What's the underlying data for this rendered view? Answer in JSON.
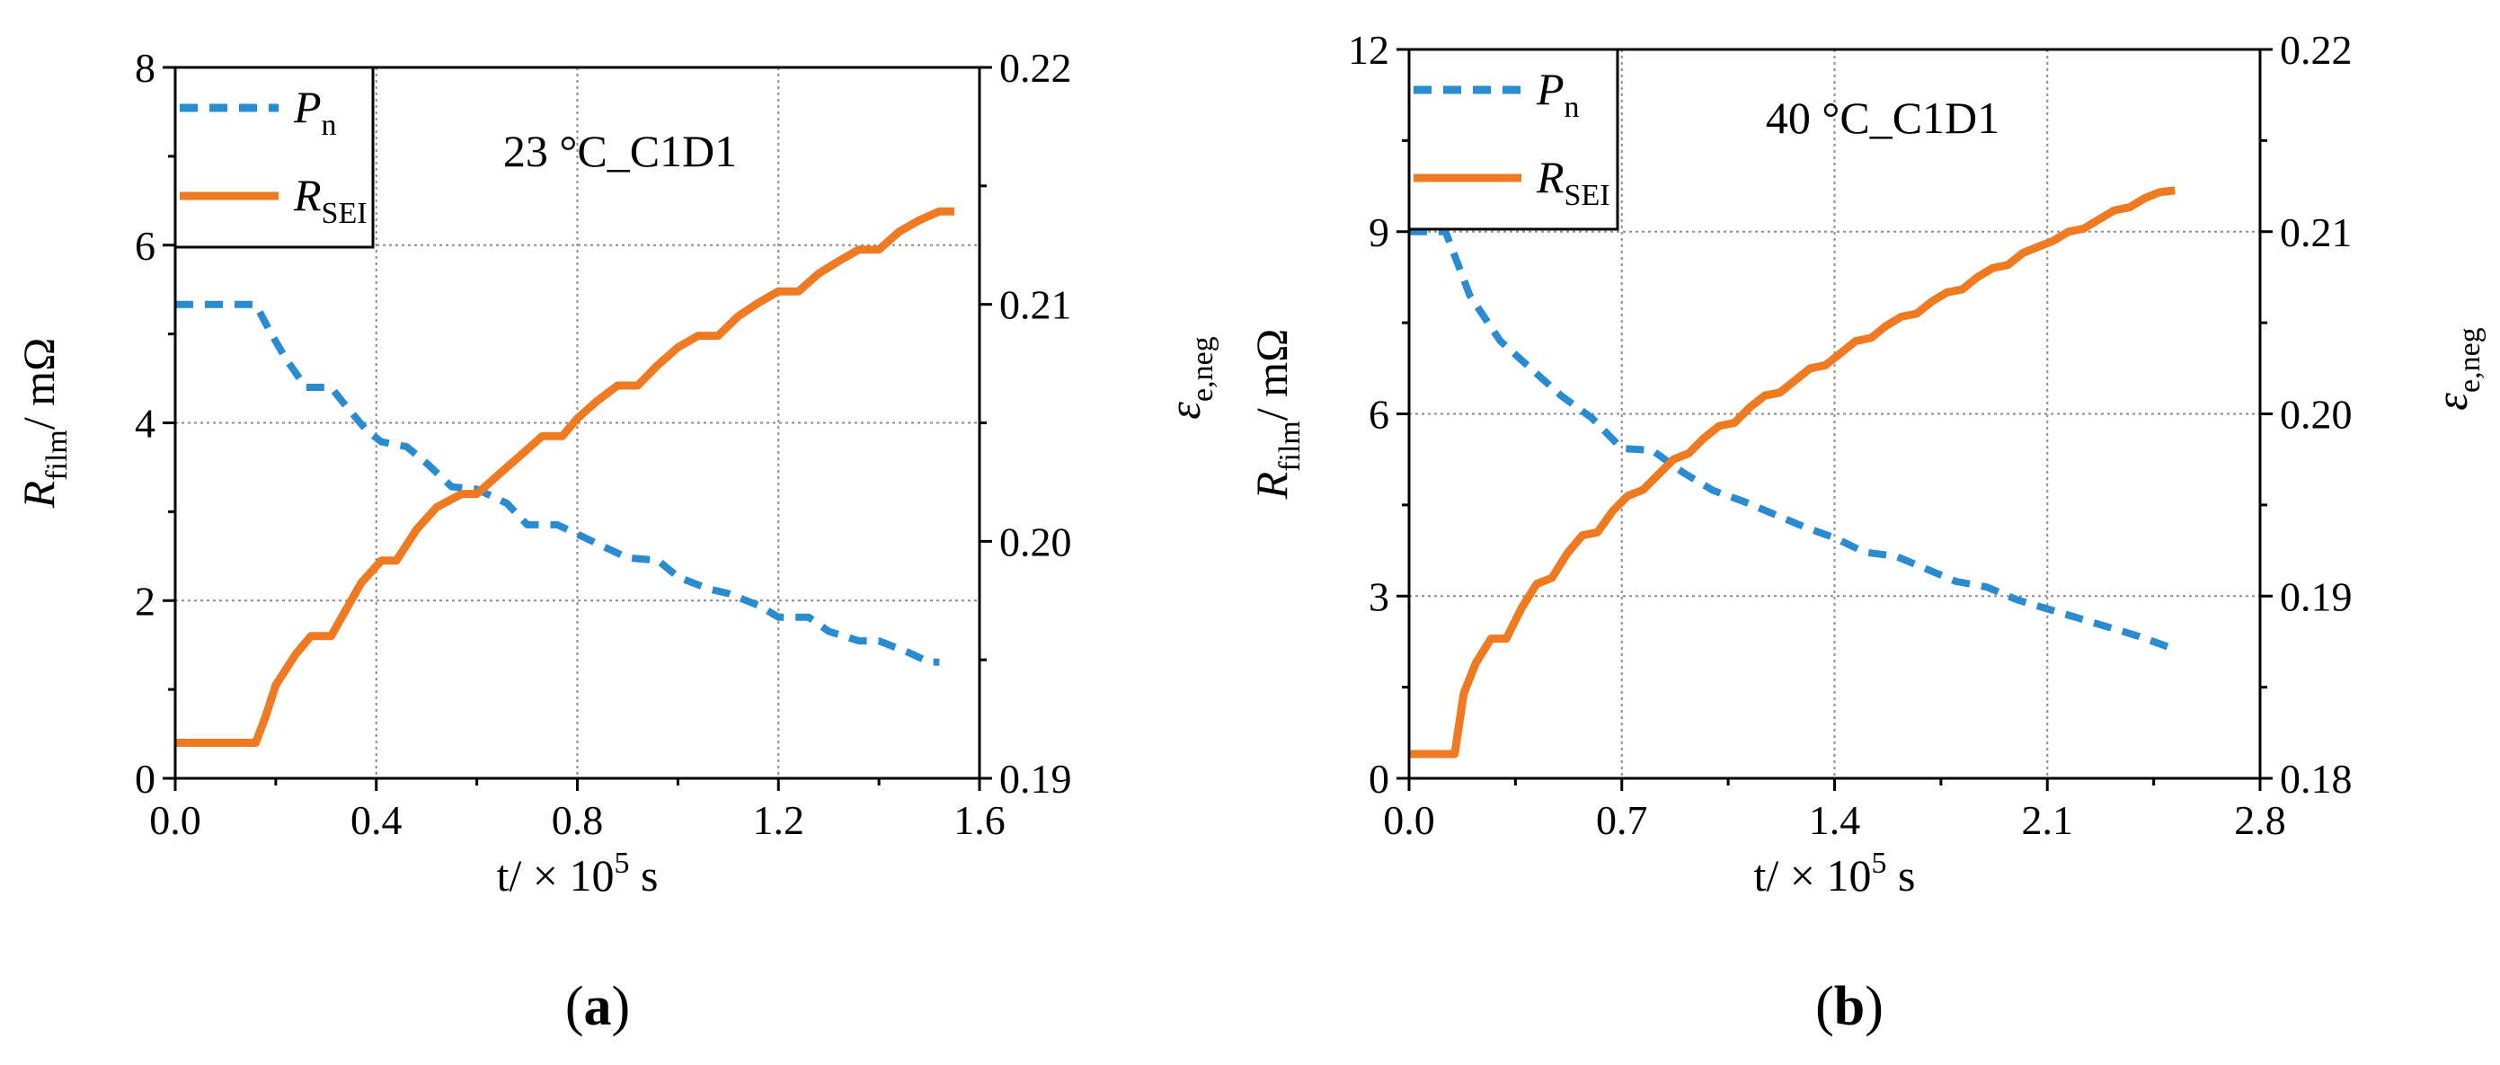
{
  "chart_data": [
    {
      "type": "line",
      "panel_label": "a",
      "annotation": "23 °C_C1D1",
      "xlabel": "t/ × 10⁵ s",
      "xlabel_parts": {
        "pre": "t/ × 10",
        "sup": "5",
        "post": " s"
      },
      "ylabel_left": {
        "main": "R",
        "sub": "film",
        "post": "/ mΩ"
      },
      "ylabel_right": {
        "main": "ε",
        "sub": "e,neg"
      },
      "xlim": [
        0,
        1.6
      ],
      "ylim_left": [
        0,
        8
      ],
      "ylim_right": [
        0.19,
        0.22
      ],
      "xticks": [
        "0.0",
        "0.4",
        "0.8",
        "1.2",
        "1.6"
      ],
      "yticks_left": [
        "0",
        "2",
        "4",
        "6",
        "8"
      ],
      "yticks_right": [
        "0.19",
        "0.20",
        "0.21",
        "0.22"
      ],
      "grid": true,
      "legend": [
        {
          "main": "P",
          "sub": "n",
          "style": "dashed",
          "color": "#2a8cd0"
        },
        {
          "main": "R",
          "sub": "SEI",
          "style": "solid",
          "color": "#f07a22"
        }
      ],
      "series": [
        {
          "name": "Pn",
          "axis": "right",
          "style": "dashed",
          "color": "#2a8cd0",
          "x": [
            0.0,
            0.16,
            0.19,
            0.22,
            0.26,
            0.31,
            0.34,
            0.38,
            0.41,
            0.46,
            0.5,
            0.55,
            0.6,
            0.66,
            0.7,
            0.76,
            0.8,
            0.85,
            0.9,
            0.96,
            1.0,
            1.06,
            1.1,
            1.16,
            1.2,
            1.26,
            1.3,
            1.36,
            1.4,
            1.46,
            1.5,
            1.52
          ],
          "y": [
            0.21,
            0.21,
            0.2088,
            0.2077,
            0.2065,
            0.2065,
            0.2057,
            0.2047,
            0.2042,
            0.204,
            0.2033,
            0.2023,
            0.2022,
            0.2016,
            0.2007,
            0.2007,
            0.2003,
            0.1998,
            0.1993,
            0.1992,
            0.1985,
            0.198,
            0.1978,
            0.1973,
            0.1968,
            0.1968,
            0.1962,
            0.1958,
            0.1958,
            0.1953,
            0.1949,
            0.1949
          ]
        },
        {
          "name": "RSEI",
          "axis": "left",
          "style": "solid",
          "color": "#f07a22",
          "x": [
            0.0,
            0.16,
            0.18,
            0.2,
            0.24,
            0.27,
            0.31,
            0.33,
            0.37,
            0.41,
            0.44,
            0.48,
            0.52,
            0.57,
            0.6,
            0.64,
            0.66,
            0.7,
            0.73,
            0.77,
            0.8,
            0.84,
            0.88,
            0.92,
            0.96,
            1.0,
            1.04,
            1.08,
            1.12,
            1.16,
            1.2,
            1.24,
            1.28,
            1.32,
            1.36,
            1.4,
            1.44,
            1.48,
            1.52,
            1.55
          ],
          "y": [
            0.4,
            0.4,
            0.7,
            1.05,
            1.4,
            1.6,
            1.6,
            1.8,
            2.2,
            2.45,
            2.45,
            2.8,
            3.05,
            3.2,
            3.2,
            3.4,
            3.5,
            3.7,
            3.85,
            3.85,
            4.05,
            4.25,
            4.42,
            4.42,
            4.65,
            4.85,
            4.98,
            4.98,
            5.2,
            5.35,
            5.48,
            5.48,
            5.68,
            5.82,
            5.95,
            5.95,
            6.15,
            6.28,
            6.38,
            6.38
          ]
        }
      ]
    },
    {
      "type": "line",
      "panel_label": "b",
      "annotation": "40 °C_C1D1",
      "xlabel": "t/ × 10⁵ s",
      "xlabel_parts": {
        "pre": "t/ × 10",
        "sup": "5",
        "post": " s"
      },
      "ylabel_left": {
        "main": "R",
        "sub": "film",
        "post": "/ mΩ"
      },
      "ylabel_right": {
        "main": "ε",
        "sub": "e,neg"
      },
      "xlim": [
        0,
        2.8
      ],
      "ylim_left": [
        0,
        12
      ],
      "ylim_right": [
        0.18,
        0.22
      ],
      "xticks": [
        "0.0",
        "0.7",
        "1.4",
        "2.1",
        "2.8"
      ],
      "yticks_left": [
        "0",
        "3",
        "6",
        "9",
        "12"
      ],
      "yticks_right": [
        "0.18",
        "0.19",
        "0.20",
        "0.21",
        "0.22"
      ],
      "grid": true,
      "legend": [
        {
          "main": "P",
          "sub": "n",
          "style": "dashed",
          "color": "#2a8cd0"
        },
        {
          "main": "R",
          "sub": "SEI",
          "style": "solid",
          "color": "#f07a22"
        }
      ],
      "series": [
        {
          "name": "Pn",
          "axis": "right",
          "style": "dashed",
          "color": "#2a8cd0",
          "x": [
            0.0,
            0.12,
            0.2,
            0.3,
            0.4,
            0.5,
            0.6,
            0.7,
            0.8,
            0.9,
            1.0,
            1.1,
            1.2,
            1.3,
            1.4,
            1.5,
            1.6,
            1.7,
            1.8,
            1.9,
            2.0,
            2.1,
            2.2,
            2.3,
            2.4,
            2.5
          ],
          "y": [
            0.21,
            0.21,
            0.2065,
            0.204,
            0.2025,
            0.201,
            0.1998,
            0.1981,
            0.198,
            0.1968,
            0.1958,
            0.1952,
            0.1945,
            0.1938,
            0.1932,
            0.1924,
            0.1922,
            0.1915,
            0.1908,
            0.1905,
            0.1898,
            0.1893,
            0.1888,
            0.1883,
            0.1878,
            0.1872
          ]
        },
        {
          "name": "RSEI",
          "axis": "left",
          "style": "solid",
          "color": "#f07a22",
          "x": [
            0.0,
            0.15,
            0.18,
            0.22,
            0.27,
            0.32,
            0.37,
            0.42,
            0.47,
            0.52,
            0.57,
            0.62,
            0.67,
            0.72,
            0.77,
            0.82,
            0.87,
            0.92,
            0.97,
            1.02,
            1.07,
            1.12,
            1.17,
            1.22,
            1.27,
            1.32,
            1.37,
            1.42,
            1.47,
            1.52,
            1.57,
            1.62,
            1.67,
            1.72,
            1.77,
            1.82,
            1.87,
            1.92,
            1.97,
            2.02,
            2.07,
            2.12,
            2.17,
            2.22,
            2.27,
            2.32,
            2.37,
            2.42,
            2.47,
            2.52
          ],
          "y": [
            0.4,
            0.4,
            1.4,
            1.9,
            2.3,
            2.3,
            2.8,
            3.2,
            3.3,
            3.7,
            4.0,
            4.05,
            4.4,
            4.65,
            4.75,
            5.0,
            5.25,
            5.35,
            5.6,
            5.8,
            5.85,
            6.1,
            6.3,
            6.35,
            6.55,
            6.75,
            6.8,
            7.0,
            7.2,
            7.25,
            7.45,
            7.6,
            7.65,
            7.85,
            8.0,
            8.05,
            8.25,
            8.4,
            8.45,
            8.65,
            8.75,
            8.85,
            9.0,
            9.05,
            9.2,
            9.35,
            9.4,
            9.55,
            9.65,
            9.68
          ]
        }
      ]
    }
  ]
}
